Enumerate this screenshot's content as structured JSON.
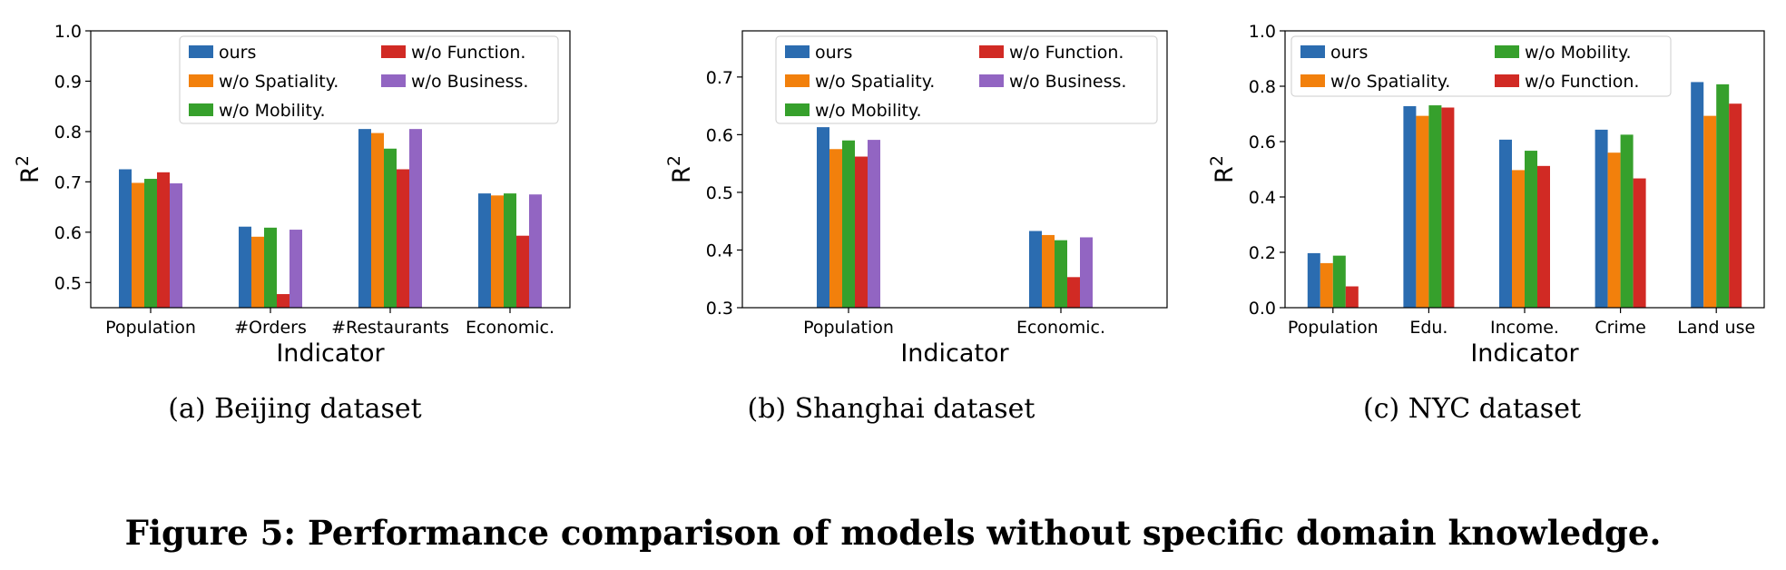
{
  "figure_caption": "Figure 5: Performance comparison of models without specific domain knowledge.",
  "chart_data": [
    {
      "type": "bar",
      "sub_caption": "(a) Beijing dataset",
      "xlabel": "Indicator",
      "ylabel_base": "R",
      "ylabel_sup": "2",
      "ylim": [
        0.45,
        1.0
      ],
      "yticks": [
        "0.5",
        "0.6",
        "0.7",
        "0.8",
        "0.9",
        "1.0"
      ],
      "categories": [
        "Population",
        "#Orders",
        "#Restaurants",
        "Economic."
      ],
      "legend_position": "top-center",
      "legend_columns": [
        [
          "ours",
          "w/o Spatiality.",
          "w/o Mobility."
        ],
        [
          "w/o Function.",
          "w/o Business."
        ]
      ],
      "series": [
        {
          "name": "ours",
          "color": "#2b6cb0",
          "values": [
            0.725,
            0.611,
            0.805,
            0.677
          ]
        },
        {
          "name": "w/o Spatiality.",
          "color": "#f2800c",
          "values": [
            0.698,
            0.591,
            0.797,
            0.673
          ]
        },
        {
          "name": "w/o Mobility.",
          "color": "#36a02c",
          "values": [
            0.706,
            0.609,
            0.766,
            0.677
          ]
        },
        {
          "name": "w/o Function.",
          "color": "#d12a24",
          "values": [
            0.719,
            0.477,
            0.725,
            0.593
          ]
        },
        {
          "name": "w/o Business.",
          "color": "#9265c2",
          "values": [
            0.697,
            0.605,
            0.805,
            0.675
          ]
        }
      ]
    },
    {
      "type": "bar",
      "sub_caption": "(b) Shanghai dataset",
      "xlabel": "Indicator",
      "ylabel_base": "R",
      "ylabel_sup": "2",
      "ylim": [
        0.3,
        0.78
      ],
      "yticks": [
        "0.3",
        "0.4",
        "0.5",
        "0.6",
        "0.7"
      ],
      "categories": [
        "Population",
        "Economic."
      ],
      "legend_position": "top-center",
      "legend_columns": [
        [
          "ours",
          "w/o Spatiality.",
          "w/o Mobility."
        ],
        [
          "w/o Function.",
          "w/o Business."
        ]
      ],
      "series": [
        {
          "name": "ours",
          "color": "#2b6cb0",
          "values": [
            0.613,
            0.433
          ]
        },
        {
          "name": "w/o Spatiality.",
          "color": "#f2800c",
          "values": [
            0.575,
            0.426
          ]
        },
        {
          "name": "w/o Mobility.",
          "color": "#36a02c",
          "values": [
            0.59,
            0.417
          ]
        },
        {
          "name": "w/o Function.",
          "color": "#d12a24",
          "values": [
            0.562,
            0.353
          ]
        },
        {
          "name": "w/o Business.",
          "color": "#9265c2",
          "values": [
            0.591,
            0.422
          ]
        }
      ]
    },
    {
      "type": "bar",
      "sub_caption": "(c) NYC dataset",
      "xlabel": "Indicator",
      "ylabel_base": "R",
      "ylabel_sup": "2",
      "ylim": [
        0.0,
        1.0
      ],
      "yticks": [
        "0.0",
        "0.2",
        "0.4",
        "0.6",
        "0.8",
        "1.0"
      ],
      "categories": [
        "Population",
        "Edu.",
        "Income.",
        "Crime",
        "Land use"
      ],
      "legend_position": "top-left",
      "legend_columns": [
        [
          "ours",
          "w/o Spatiality."
        ],
        [
          "w/o Mobility.",
          "w/o Function."
        ]
      ],
      "series": [
        {
          "name": "ours",
          "color": "#2b6cb0",
          "values": [
            0.197,
            0.728,
            0.607,
            0.643,
            0.815
          ]
        },
        {
          "name": "w/o Spatiality.",
          "color": "#f2800c",
          "values": [
            0.161,
            0.693,
            0.497,
            0.56,
            0.693
          ]
        },
        {
          "name": "w/o Mobility.",
          "color": "#36a02c",
          "values": [
            0.188,
            0.731,
            0.567,
            0.625,
            0.807
          ]
        },
        {
          "name": "w/o Function.",
          "color": "#d12a24",
          "values": [
            0.077,
            0.723,
            0.512,
            0.467,
            0.737
          ]
        }
      ]
    }
  ]
}
